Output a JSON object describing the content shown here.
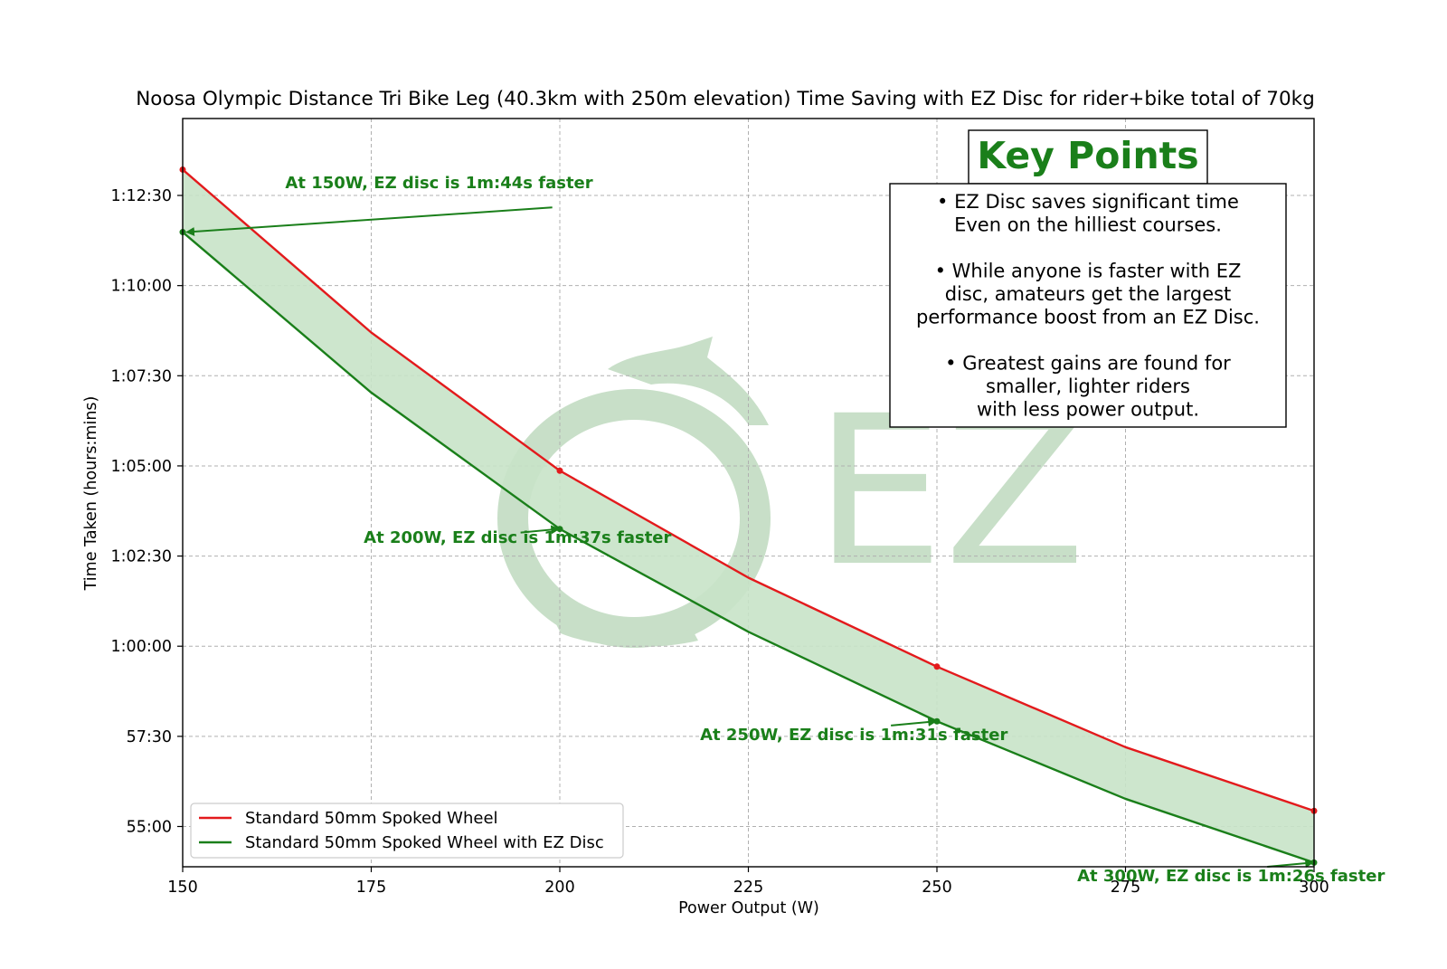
{
  "chart_data": {
    "type": "line",
    "title": "Noosa Olympic Distance Tri Bike Leg (40.3km with 250m elevation) Time Saving with EZ Disc for rider+bike total of 70kg",
    "xlabel": "Power Output (W)",
    "ylabel": "Time Taken (hours:mins)",
    "xlim": [
      150,
      300
    ],
    "ylim_seconds": [
      3233,
      4478
    ],
    "x_ticks": [
      150,
      175,
      200,
      225,
      250,
      275,
      300
    ],
    "y_ticks": [
      {
        "seconds": 3300,
        "label": "55:00"
      },
      {
        "seconds": 3450,
        "label": "57:30"
      },
      {
        "seconds": 3600,
        "label": "1:00:00"
      },
      {
        "seconds": 3750,
        "label": "1:02:30"
      },
      {
        "seconds": 3900,
        "label": "1:05:00"
      },
      {
        "seconds": 4050,
        "label": "1:07:30"
      },
      {
        "seconds": 4200,
        "label": "1:10:00"
      },
      {
        "seconds": 4350,
        "label": "1:12:30"
      }
    ],
    "grid": true,
    "legend_position": "bottom-left",
    "fill_between": {
      "color": "#c8e3c8"
    },
    "x": [
      150,
      175,
      200,
      225,
      250,
      275,
      300
    ],
    "series": [
      {
        "name": "Standard 50mm Spoked Wheel",
        "color": "#e31a1c",
        "values_seconds": [
          4393,
          4122,
          3892,
          3714,
          3566,
          3432,
          3326
        ]
      },
      {
        "name": "Standard 50mm Spoked Wheel with EZ Disc",
        "color": "#1a7f1a",
        "values_seconds": [
          4289,
          4022,
          3795,
          3624,
          3475,
          3346,
          3240
        ]
      }
    ],
    "markers": [
      {
        "series": 0,
        "x": 150,
        "y_seconds": 4393
      },
      {
        "series": 0,
        "x": 200,
        "y_seconds": 3892
      },
      {
        "series": 0,
        "x": 250,
        "y_seconds": 3566
      },
      {
        "series": 0,
        "x": 300,
        "y_seconds": 3326
      },
      {
        "series": 1,
        "x": 150,
        "y_seconds": 4289
      },
      {
        "series": 1,
        "x": 200,
        "y_seconds": 3795
      },
      {
        "series": 1,
        "x": 250,
        "y_seconds": 3475
      },
      {
        "series": 1,
        "x": 300,
        "y_seconds": 3240
      }
    ],
    "annotations": [
      {
        "text": "At 150W, EZ disc is 1m:44s faster",
        "text_x": 163.6,
        "text_y_seconds": 4362,
        "anchor": "start",
        "arrow_from_x": 199.0,
        "arrow_from_y_seconds": 4330,
        "arrow_to_x": 150.6,
        "arrow_to_y_seconds": 4289
      },
      {
        "text": "At 200W, EZ disc is 1m:37s faster",
        "text_x": 174.0,
        "text_y_seconds": 3772,
        "anchor": "end",
        "arrow_from_x": 194.8,
        "arrow_from_y_seconds": 3789,
        "arrow_to_x": 199.8,
        "arrow_to_y_seconds": 3795
      },
      {
        "text": "At 250W, EZ disc is 1m:31s faster",
        "text_x": 218.6,
        "text_y_seconds": 3444,
        "anchor": "end",
        "arrow_from_x": 243.9,
        "arrow_from_y_seconds": 3468,
        "arrow_to_x": 249.8,
        "arrow_to_y_seconds": 3475
      },
      {
        "text": "At 300W, EZ disc is 1m:26s faster",
        "text_x": 268.6,
        "text_y_seconds": 3209,
        "anchor": "end",
        "arrow_from_x": 293.8,
        "arrow_from_y_seconds": 3233,
        "arrow_to_x": 299.8,
        "arrow_to_y_seconds": 3240
      }
    ],
    "key_points": {
      "heading": "Key Points",
      "lines": [
        "• EZ Disc saves significant time",
        "Even on the hilliest courses.",
        "",
        "• While anyone is faster with EZ",
        "disc, amateurs get the largest",
        "performance boost from an EZ Disc.",
        "",
        "• Greatest gains are found for",
        "smaller, lighter riders",
        "with less power output."
      ]
    },
    "watermark": {
      "text": "EZ",
      "color": "#c8dfc8"
    }
  }
}
